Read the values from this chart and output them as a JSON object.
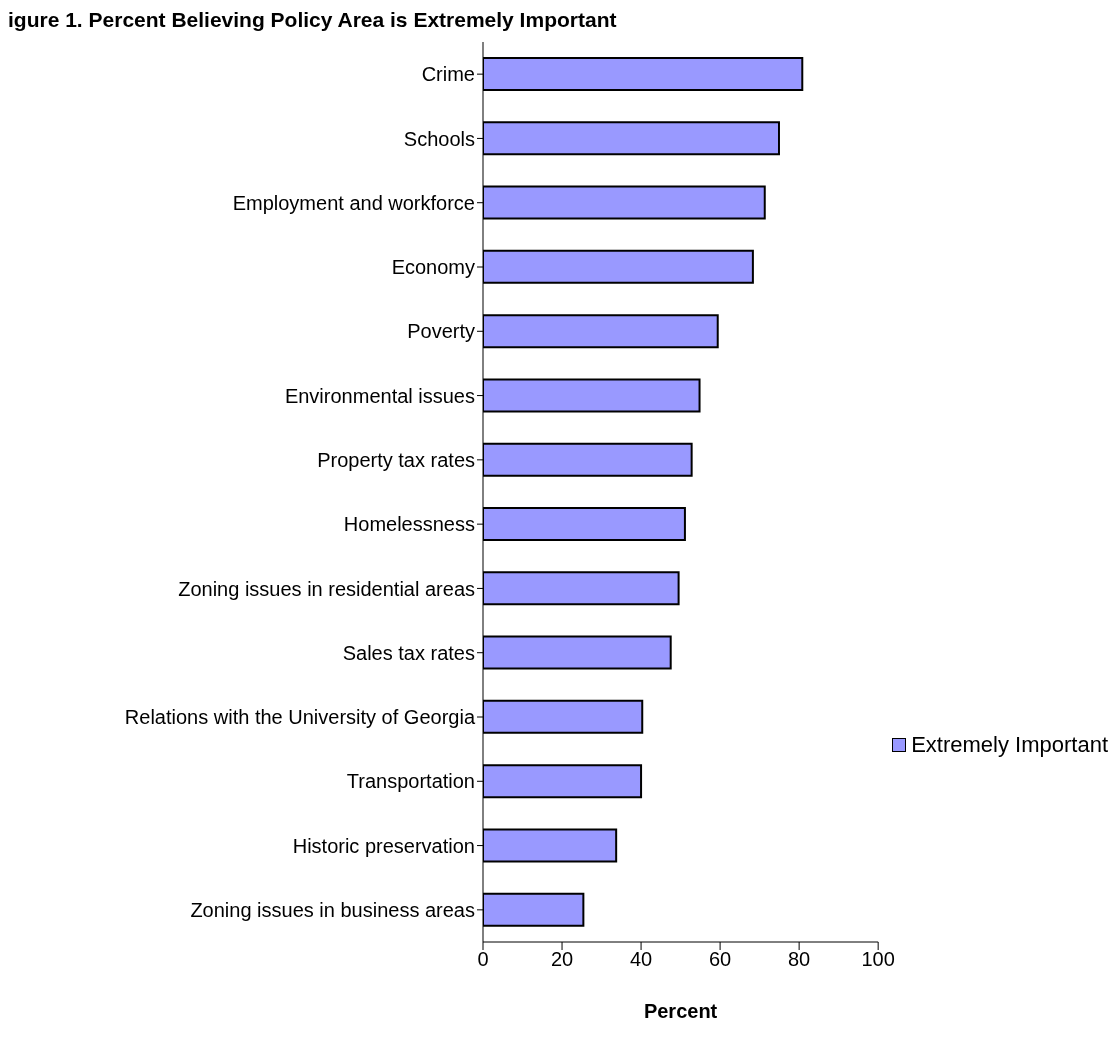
{
  "chart_data": {
    "type": "bar",
    "orientation": "horizontal",
    "title": "igure 1. Percent Believing Policy Area is Extremely Important",
    "xlabel": "Percent",
    "categories": [
      "Crime",
      "Schools",
      "Employment and workforce",
      "Economy",
      "Poverty",
      "Environmental issues",
      "Property tax rates",
      "Homelessness",
      "Zoning issues in residential areas",
      "Sales tax rates",
      "Relations with the University of Georgia",
      "Transportation",
      "Historic preservation",
      "Zoning issues in business areas"
    ],
    "series": [
      {
        "name": "Extremely Important",
        "color": "#9999ff",
        "values": [
          80.8,
          74.9,
          71.3,
          68.3,
          59.4,
          54.8,
          52.8,
          51.1,
          49.5,
          47.5,
          40.3,
          40.0,
          33.7,
          25.4
        ]
      }
    ],
    "xlim": [
      0,
      100
    ],
    "xticks": [
      0,
      20,
      40,
      60,
      80,
      100
    ],
    "legend": "right",
    "grid": false
  }
}
